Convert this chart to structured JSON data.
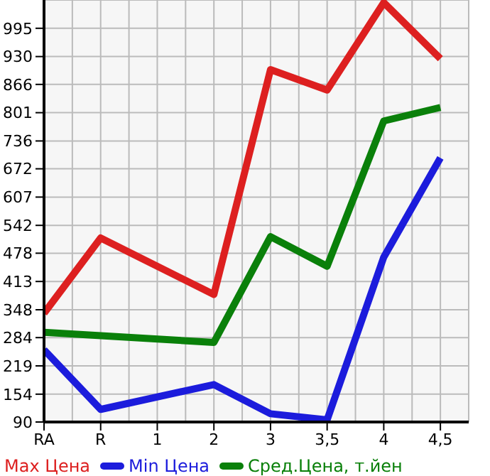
{
  "chart_data": {
    "type": "line",
    "categories": [
      "RA",
      "R",
      "1",
      "2",
      "3",
      "3,5",
      "4",
      "4,5"
    ],
    "series": [
      {
        "name": "Max Цена",
        "color": "#dd2020",
        "values": [
          340,
          513,
          null,
          383,
          900,
          853,
          1054,
          925
        ]
      },
      {
        "name": "Min Цена",
        "color": "#1c1cdc",
        "values": [
          256,
          119,
          null,
          176,
          109,
          95,
          469,
          697
        ]
      },
      {
        "name": "Сред.Цена, т.йен",
        "color": "#0a800a",
        "values": [
          296,
          null,
          null,
          273,
          516,
          448,
          782,
          813
        ]
      }
    ],
    "ylim": [
      90,
      1060
    ],
    "yticks": [
      90,
      154,
      219,
      284,
      348,
      413,
      478,
      542,
      607,
      672,
      736,
      801,
      866,
      930,
      995
    ],
    "grid": true,
    "legend": "bottom",
    "marker": "none",
    "line_style": "solid"
  }
}
